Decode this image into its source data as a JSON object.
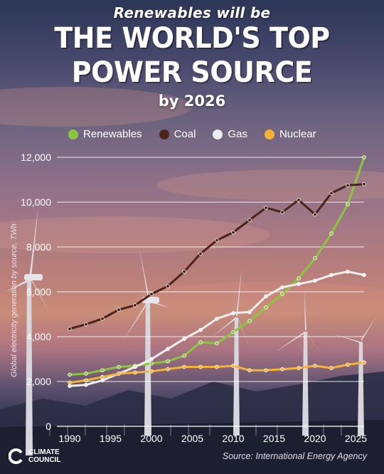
{
  "header": {
    "kicker": "Renewables will be",
    "headline_line1": "THE WORLD'S TOP",
    "headline_line2": "POWER SOURCE",
    "subtitle": "by 2026"
  },
  "legend": [
    {
      "label": "Renewables",
      "color": "#8cc63f"
    },
    {
      "label": "Coal",
      "color": "#4a2418"
    },
    {
      "label": "Gas",
      "color": "#eeeeee"
    },
    {
      "label": "Nuclear",
      "color": "#f5b335"
    }
  ],
  "logo": {
    "line1": "CLIMATE",
    "line2": "COUNCIL"
  },
  "source": "Source: International Energy Agency",
  "chart_data": {
    "type": "line",
    "ylabel": "Global electricity generation by source, TWh",
    "xlabel": "",
    "ylim": [
      0,
      12000
    ],
    "xlim": [
      1990,
      2026
    ],
    "yticks": [
      0,
      2000,
      4000,
      6000,
      8000,
      10000,
      12000
    ],
    "ytick_labels": [
      "0",
      "2,000",
      "4,000",
      "6,000",
      "8,000",
      "10,000",
      "12,000"
    ],
    "xticks": [
      1990,
      1995,
      2000,
      2005,
      2010,
      2015,
      2020,
      2025
    ],
    "xtick_labels": [
      "1990",
      "1995",
      "2000",
      "2005",
      "2010",
      "2015",
      "2020",
      "2025"
    ],
    "grid": true,
    "series": [
      {
        "name": "Renewables",
        "color": "#8cc63f",
        "x": [
          1990,
          1992,
          1994,
          1996,
          1998,
          2000,
          2002,
          2004,
          2006,
          2008,
          2010,
          2012,
          2014,
          2016,
          2018,
          2020,
          2022,
          2024,
          2026
        ],
        "y": [
          2300,
          2350,
          2500,
          2650,
          2700,
          2800,
          2900,
          3150,
          3750,
          3700,
          4200,
          4700,
          5300,
          5900,
          6600,
          7500,
          8600,
          9900,
          12000
        ]
      },
      {
        "name": "Coal",
        "color": "#4a2418",
        "x": [
          1990,
          1992,
          1994,
          1996,
          1998,
          2000,
          2002,
          2004,
          2006,
          2008,
          2010,
          2012,
          2014,
          2016,
          2018,
          2020,
          2022,
          2024,
          2026
        ],
        "y": [
          4350,
          4550,
          4800,
          5200,
          5400,
          5900,
          6250,
          6900,
          7700,
          8300,
          8650,
          9200,
          9750,
          9550,
          10100,
          9450,
          10400,
          10750,
          10800
        ]
      },
      {
        "name": "Gas",
        "color": "#eeeeee",
        "x": [
          1990,
          1992,
          1994,
          1996,
          1998,
          2000,
          2002,
          2004,
          2006,
          2008,
          2010,
          2012,
          2014,
          2016,
          2018,
          2020,
          2022,
          2024,
          2026
        ],
        "y": [
          1800,
          1850,
          2050,
          2350,
          2650,
          3000,
          3450,
          3900,
          4300,
          4800,
          5050,
          5100,
          5800,
          6200,
          6350,
          6500,
          6750,
          6900,
          6750
        ]
      },
      {
        "name": "Nuclear",
        "color": "#f5b335",
        "x": [
          1990,
          1992,
          1994,
          1996,
          1998,
          2000,
          2002,
          2004,
          2006,
          2008,
          2010,
          2012,
          2014,
          2016,
          2018,
          2020,
          2022,
          2024,
          2026
        ],
        "y": [
          1950,
          2050,
          2200,
          2350,
          2400,
          2450,
          2550,
          2650,
          2650,
          2650,
          2700,
          2500,
          2500,
          2550,
          2600,
          2700,
          2600,
          2750,
          2850
        ]
      }
    ]
  }
}
